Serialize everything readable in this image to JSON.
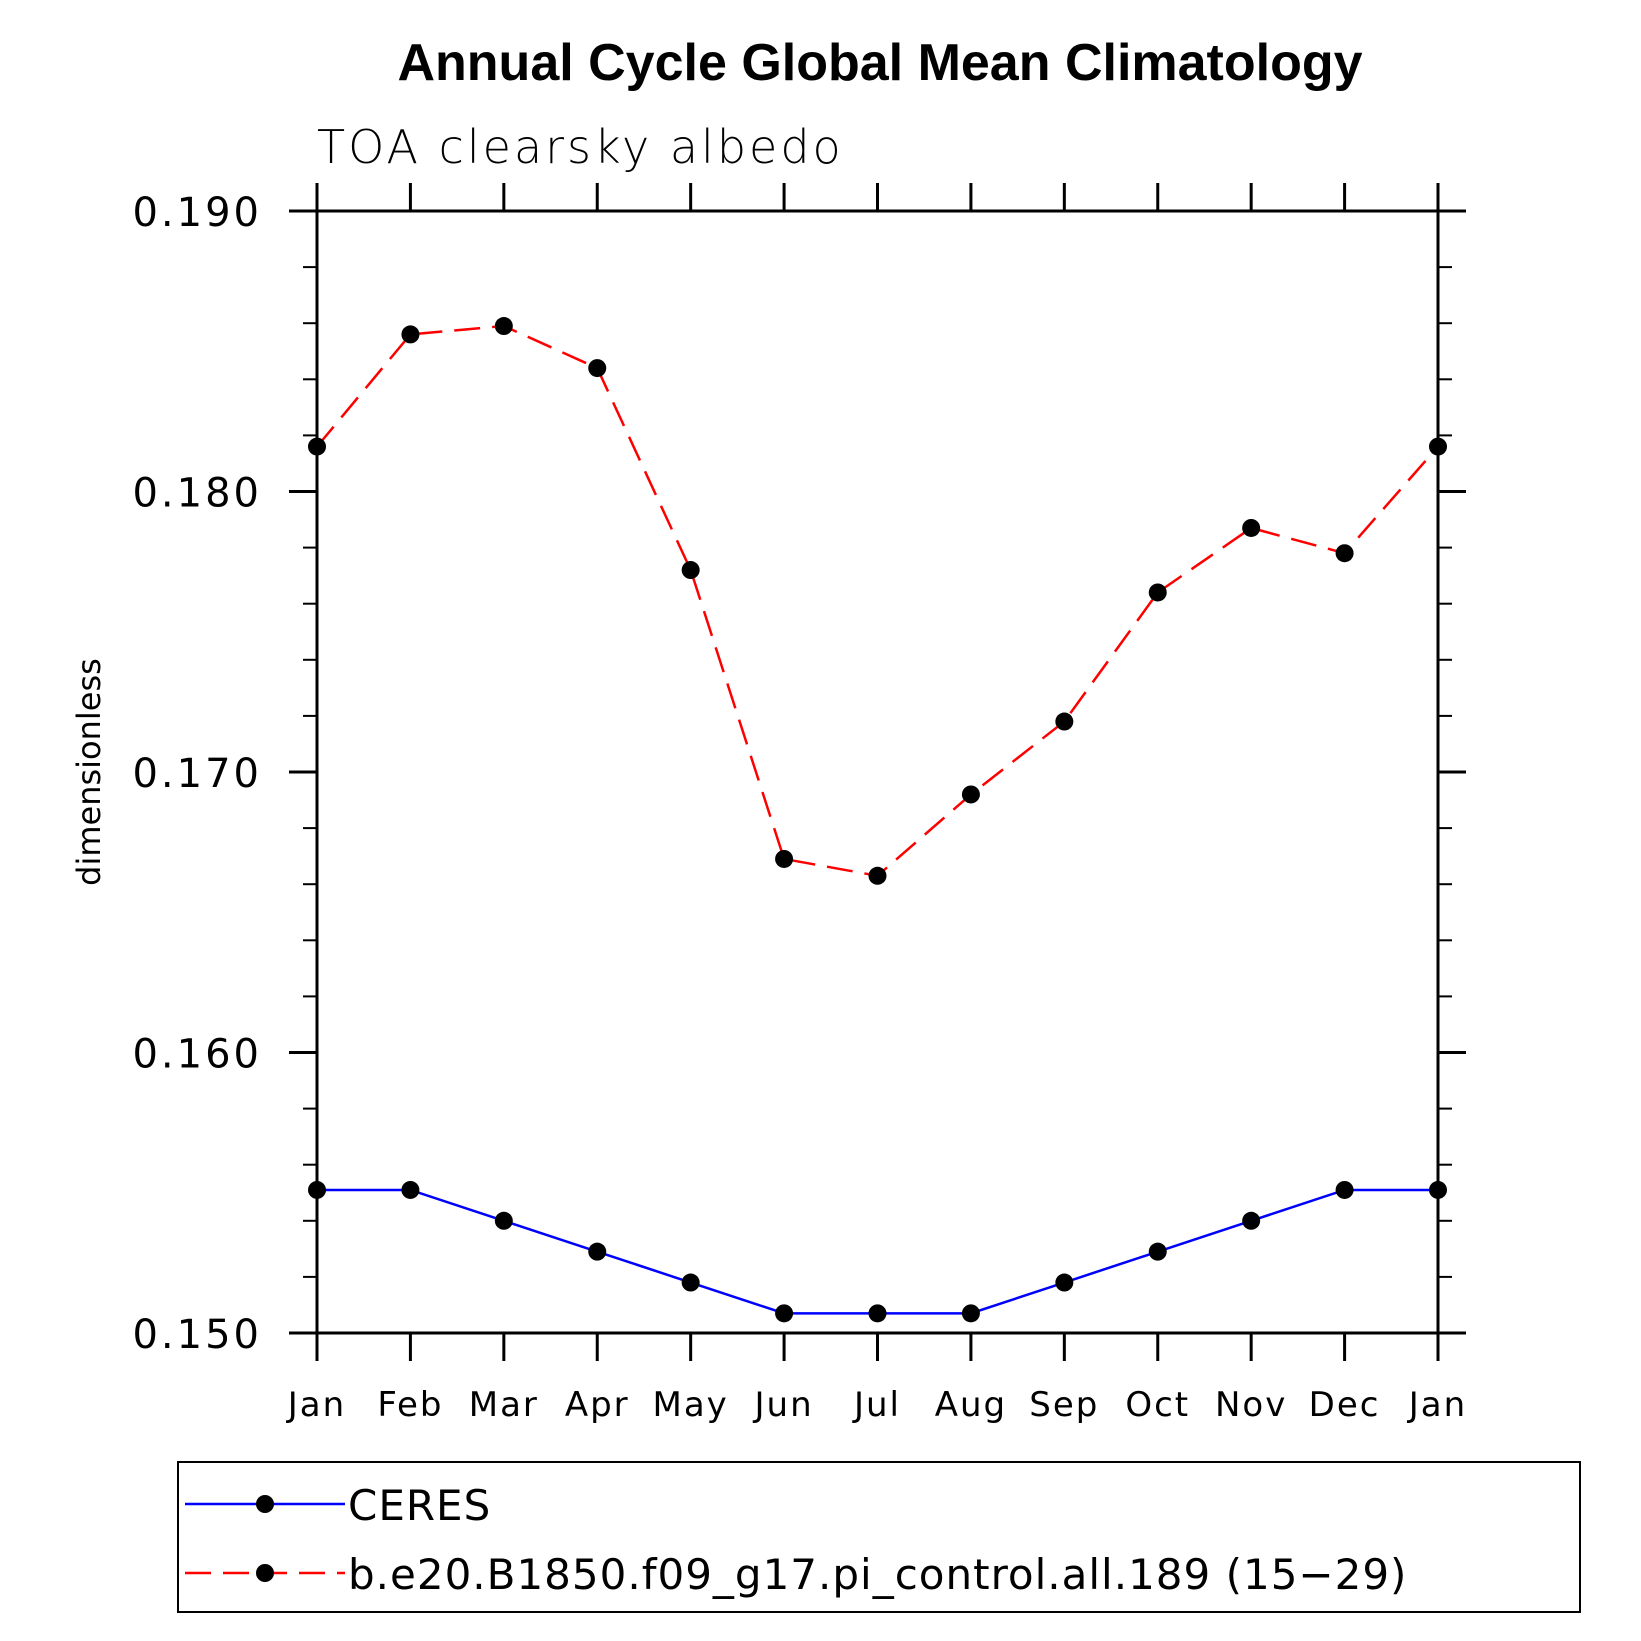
{
  "chart_data": {
    "type": "line",
    "title": "Annual Cycle Global Mean Climatology",
    "subtitle": "TOA clearsky albedo",
    "ylabel": "dimensionless",
    "xlabel": "",
    "ylim": [
      0.15,
      0.19
    ],
    "yticks": [
      "0.150",
      "0.160",
      "0.170",
      "0.180",
      "0.190"
    ],
    "ytick_values": [
      0.15,
      0.16,
      0.17,
      0.18,
      0.19
    ],
    "categories": [
      "Jan",
      "Feb",
      "Mar",
      "Apr",
      "May",
      "Jun",
      "Jul",
      "Aug",
      "Sep",
      "Oct",
      "Nov",
      "Dec",
      "Jan"
    ],
    "grid": false,
    "legend_position": "bottom",
    "series": [
      {
        "name": "CERES",
        "color": "#0000ff",
        "dash": "solid",
        "values": [
          0.1551,
          0.1551,
          0.154,
          0.1529,
          0.1518,
          0.1507,
          0.1507,
          0.1507,
          0.1518,
          0.1529,
          0.154,
          0.1551,
          0.1551
        ]
      },
      {
        "name": "b.e20.B1850.f09_g17.pi_control.all.189 (15−29)",
        "color": "#ff0000",
        "dash": "dashed",
        "values": [
          0.1816,
          0.1856,
          0.1859,
          0.1844,
          0.1772,
          0.1669,
          0.1663,
          0.1692,
          0.1718,
          0.1764,
          0.1787,
          0.1778,
          0.1816
        ]
      }
    ]
  }
}
